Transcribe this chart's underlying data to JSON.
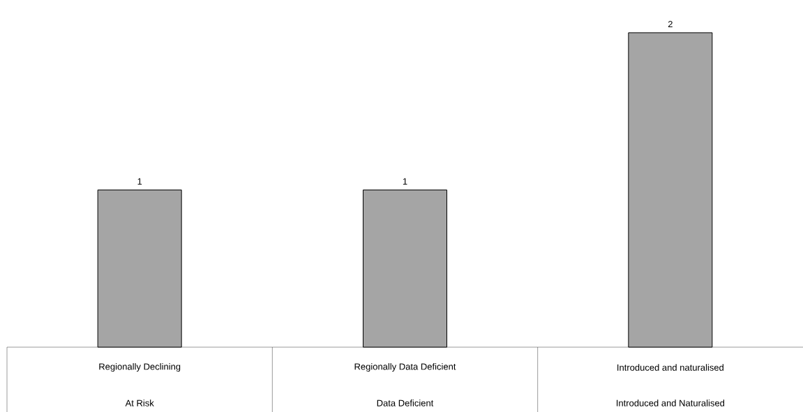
{
  "chart_data": {
    "type": "bar",
    "categories": [
      "Regionally Declining",
      "Regionally Data Deficient",
      "Introduced and naturalised"
    ],
    "values": [
      1,
      1,
      2
    ],
    "color": "#a5a5a5",
    "data_labels": true,
    "annotations": [
      "At Risk",
      "Data Deficient",
      "Introduced and Naturalised"
    ]
  }
}
